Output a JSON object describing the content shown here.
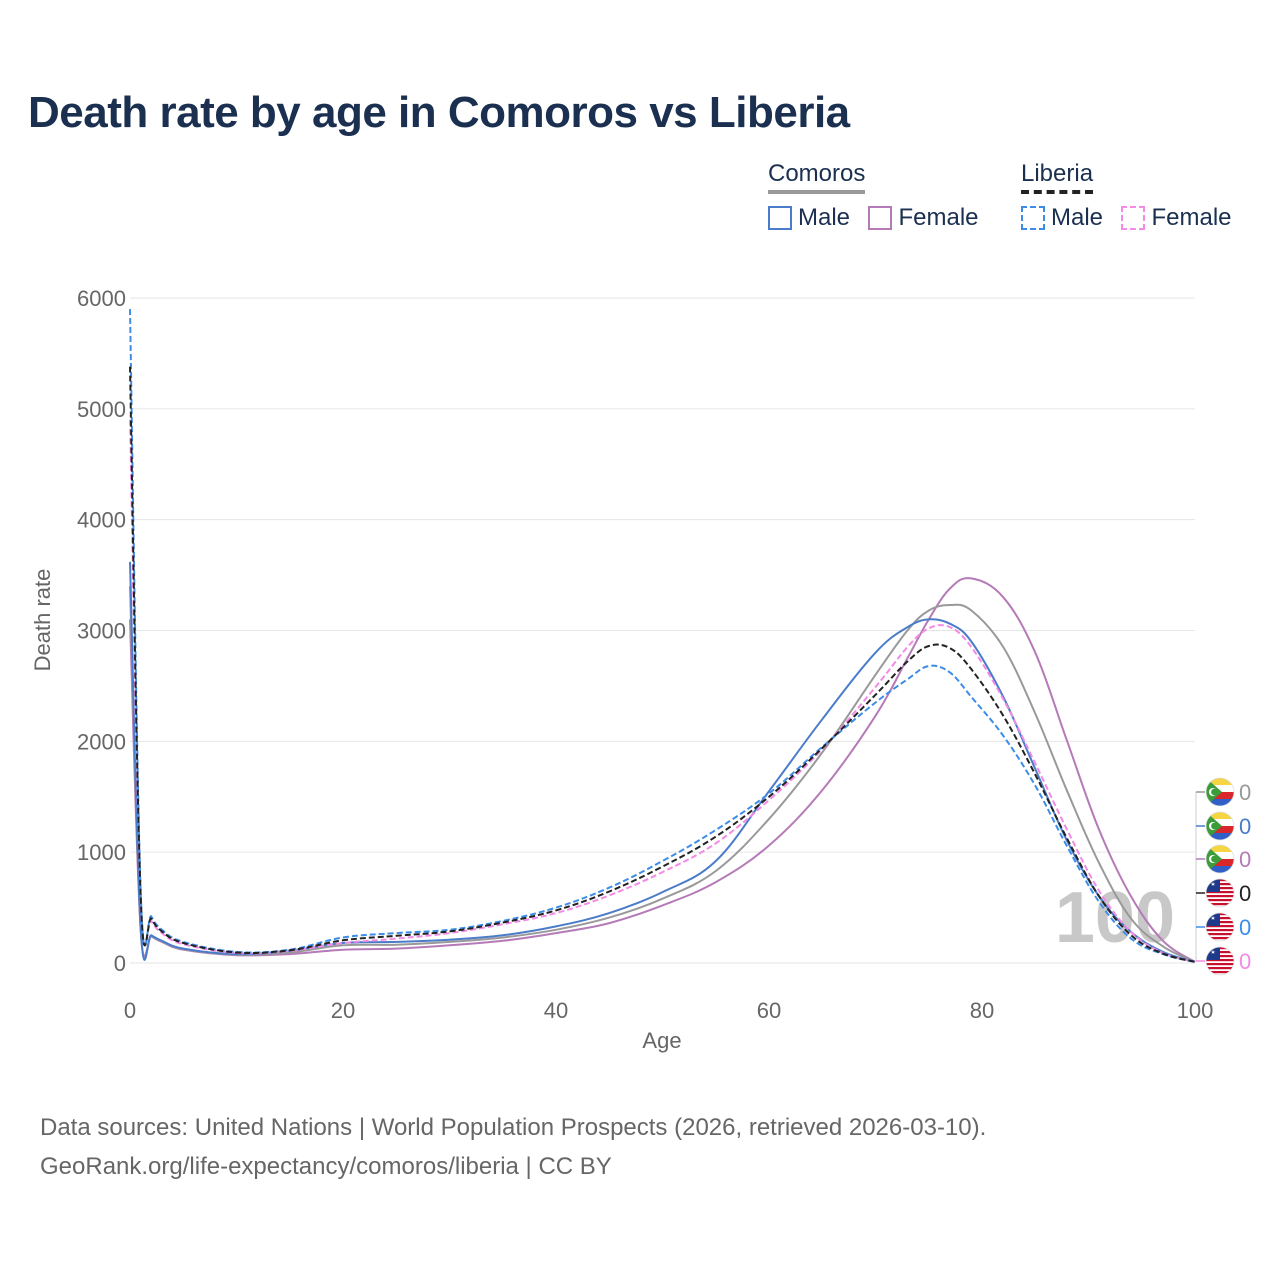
{
  "title": "Death rate by age in Comoros vs Liberia",
  "legend": {
    "groups": [
      {
        "name": "Comoros",
        "items": [
          "Male",
          "Female"
        ]
      },
      {
        "name": "Liberia",
        "items": [
          "Male",
          "Female"
        ]
      }
    ]
  },
  "colors": {
    "comoros_male": "#4a7cc9",
    "comoros_female": "#b57ab8",
    "comoros_total": "#999999",
    "liberia_male": "#3d8de8",
    "liberia_female": "#f28ae6",
    "liberia_total": "#222222",
    "comoros_flag_yellow": "#f5d542",
    "comoros_flag_red": "#d9262b",
    "comoros_flag_blue": "#2f5fc7",
    "comoros_flag_green": "#3a9d3a",
    "liberia_flag_red": "#c8102e",
    "liberia_flag_blue": "#1e3a8a"
  },
  "chart_data": {
    "type": "line",
    "title": "Death rate by age in Comoros vs Liberia",
    "xlabel": "Age",
    "ylabel": "Death rate",
    "xlim": [
      0,
      100
    ],
    "ylim": [
      0,
      6000
    ],
    "x_ticks": [
      0,
      20,
      40,
      60,
      80,
      100
    ],
    "y_ticks": [
      0,
      1000,
      2000,
      3000,
      4000,
      5000,
      6000
    ],
    "grid": true,
    "legend_position": "top-right",
    "x": [
      0,
      1,
      2,
      3,
      5,
      10,
      15,
      20,
      25,
      30,
      35,
      40,
      45,
      50,
      55,
      60,
      65,
      70,
      73,
      75,
      77,
      79,
      82,
      85,
      88,
      91,
      94,
      97,
      100
    ],
    "series": [
      {
        "name": "Comoros Male",
        "country": "Comoros",
        "sex": "Male",
        "color_key": "comoros_male",
        "dash": false,
        "values": [
          3620,
          310,
          250,
          200,
          130,
          80,
          110,
          180,
          190,
          210,
          250,
          330,
          450,
          640,
          920,
          1550,
          2200,
          2800,
          3030,
          3100,
          3060,
          2900,
          2400,
          1750,
          1100,
          600,
          280,
          100,
          10
        ]
      },
      {
        "name": "Comoros Female",
        "country": "Comoros",
        "sex": "Female",
        "color_key": "comoros_female",
        "dash": false,
        "values": [
          3100,
          300,
          240,
          190,
          120,
          70,
          80,
          120,
          130,
          160,
          200,
          270,
          360,
          520,
          730,
          1060,
          1560,
          2230,
          2750,
          3100,
          3380,
          3470,
          3300,
          2800,
          2000,
          1200,
          600,
          200,
          10
        ]
      },
      {
        "name": "Comoros Total",
        "country": "Comoros",
        "sex": "Total",
        "color_key": "comoros_total",
        "dash": false,
        "values": [
          3400,
          300,
          245,
          195,
          125,
          75,
          95,
          160,
          165,
          190,
          230,
          300,
          410,
          580,
          830,
          1300,
          1900,
          2600,
          3000,
          3180,
          3230,
          3180,
          2850,
          2250,
          1550,
          900,
          400,
          150,
          10
        ]
      },
      {
        "name": "Liberia Male",
        "country": "Liberia",
        "sex": "Male",
        "color_key": "liberia_male",
        "dash": true,
        "values": [
          5900,
          640,
          420,
          300,
          190,
          100,
          120,
          230,
          270,
          300,
          380,
          500,
          680,
          920,
          1200,
          1530,
          1950,
          2350,
          2560,
          2680,
          2620,
          2400,
          2050,
          1600,
          1050,
          550,
          220,
          80,
          10
        ]
      },
      {
        "name": "Liberia Female",
        "country": "Liberia",
        "sex": "Female",
        "color_key": "liberia_female",
        "dash": true,
        "values": [
          4900,
          560,
          380,
          270,
          170,
          90,
          110,
          180,
          220,
          270,
          350,
          450,
          610,
          820,
          1080,
          1470,
          1930,
          2490,
          2850,
          3020,
          3030,
          2850,
          2380,
          1800,
          1200,
          650,
          280,
          90,
          10
        ]
      },
      {
        "name": "Liberia Total",
        "country": "Liberia",
        "sex": "Total",
        "color_key": "liberia_total",
        "dash": true,
        "values": [
          5380,
          600,
          400,
          285,
          180,
          95,
          115,
          205,
          245,
          285,
          365,
          475,
          645,
          870,
          1140,
          1500,
          1940,
          2420,
          2720,
          2860,
          2840,
          2650,
          2230,
          1700,
          1120,
          600,
          250,
          85,
          10
        ]
      }
    ],
    "current_age_label": "100",
    "end_markers": [
      {
        "country": "Comoros",
        "color_key": "comoros_total",
        "value": "0"
      },
      {
        "country": "Comoros",
        "color_key": "comoros_male",
        "value": "0"
      },
      {
        "country": "Comoros",
        "color_key": "comoros_female",
        "value": "0"
      },
      {
        "country": "Liberia",
        "color_key": "liberia_total",
        "value": "0"
      },
      {
        "country": "Liberia",
        "color_key": "liberia_male",
        "value": "0"
      },
      {
        "country": "Liberia",
        "color_key": "liberia_female",
        "value": "0"
      }
    ]
  },
  "footer": {
    "line1": "Data sources: United Nations | World Population Prospects (2026, retrieved 2026-03-10).",
    "line2": "GeoRank.org/life-expectancy/comoros/liberia | CC BY"
  }
}
